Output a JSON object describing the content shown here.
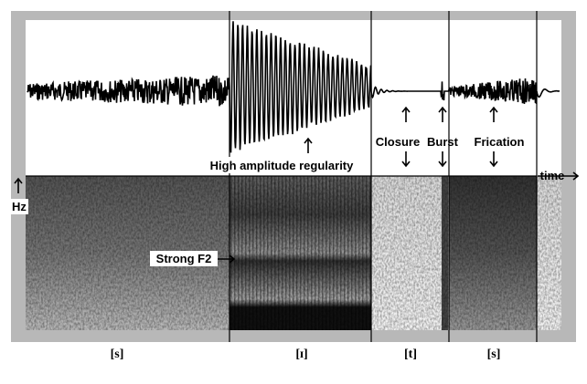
{
  "annotations": {
    "high_amplitude": "High amplitude regularity",
    "closure": "Closure",
    "burst": "Burst",
    "frication": "Frication",
    "strong_f2": "Strong F2",
    "hz": "Hz",
    "time": "time"
  },
  "segments": [
    "[s]",
    "[ɪ]",
    "[t]",
    "[s]"
  ]
}
